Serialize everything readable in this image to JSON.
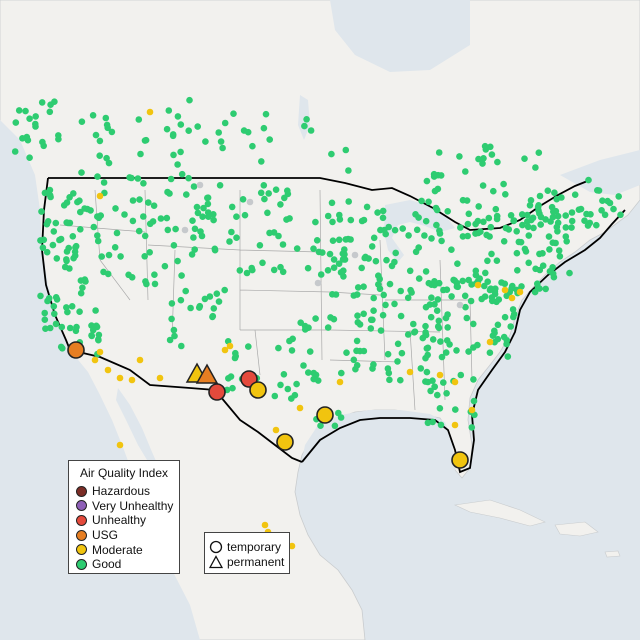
{
  "legend": {
    "title": "Air Quality Index",
    "items": [
      {
        "label": "Hazardous",
        "color": "#7b2d26"
      },
      {
        "label": "Very Unhealthy",
        "color": "#8e5fb7"
      },
      {
        "label": "Unhealthy",
        "color": "#e44a3c"
      },
      {
        "label": "USG",
        "color": "#e67e22"
      },
      {
        "label": "Moderate",
        "color": "#f1c40f"
      },
      {
        "label": "Good",
        "color": "#2ecc71"
      }
    ]
  },
  "shape_legend": {
    "items": [
      {
        "label": "temporary",
        "icon": "circle-outline-icon"
      },
      {
        "label": "permanent",
        "icon": "triangle-outline-icon"
      }
    ]
  },
  "colors": {
    "ocean": "#dfe6ec",
    "land": "#f2f1ee",
    "border": "#000000",
    "state_line": "#a9a9a9",
    "no_data": "#c6c9cc"
  }
}
